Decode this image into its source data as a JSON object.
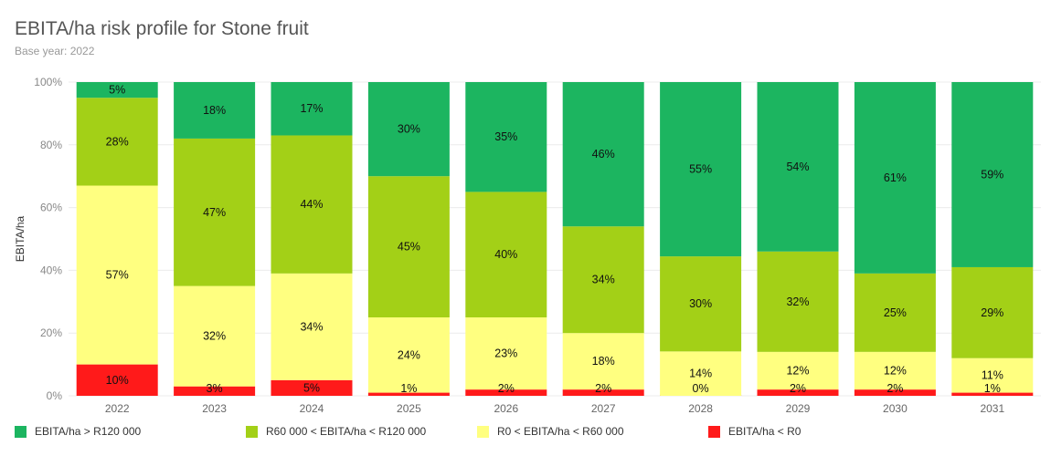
{
  "title": "EBITA/ha risk profile for Stone fruit",
  "subtitle": "Base year: 2022",
  "chart_data": {
    "type": "bar",
    "stacked": true,
    "percent_stacked": true,
    "title": "EBITA/ha risk profile for Stone fruit",
    "subtitle": "Base year: 2022",
    "xlabel": "",
    "ylabel": "EBITA/ha",
    "ylim": [
      0,
      100
    ],
    "yticks": [
      "0%",
      "20%",
      "40%",
      "60%",
      "80%",
      "100%"
    ],
    "categories": [
      "2022",
      "2023",
      "2024",
      "2025",
      "2026",
      "2027",
      "2028",
      "2029",
      "2030",
      "2031"
    ],
    "grid": true,
    "legend_position": "bottom",
    "series": [
      {
        "name": "EBITA/ha < R0",
        "color": "#ff1a1a",
        "values": [
          10,
          3,
          5,
          1,
          2,
          2,
          0,
          2,
          2,
          1
        ],
        "labels": [
          "10%",
          "3%",
          "5%",
          "1%",
          "2%",
          "2%",
          "0%",
          "2%",
          "2%",
          "1%"
        ]
      },
      {
        "name": "R0 < EBITA/ha < R60 000",
        "color": "#ffff80",
        "values": [
          57,
          32,
          34,
          24,
          23,
          18,
          14,
          12,
          12,
          11
        ],
        "labels": [
          "57%",
          "32%",
          "34%",
          "24%",
          "23%",
          "18%",
          "14%",
          "12%",
          "12%",
          "11%"
        ]
      },
      {
        "name": "R60 000 < EBITA/ha < R120 000",
        "color": "#a3d017",
        "values": [
          28,
          47,
          44,
          45,
          40,
          34,
          30,
          32,
          25,
          29
        ],
        "labels": [
          "28%",
          "47%",
          "44%",
          "45%",
          "40%",
          "34%",
          "30%",
          "32%",
          "25%",
          "29%"
        ]
      },
      {
        "name": "EBITA/ha > R120 000",
        "color": "#1cb560",
        "values": [
          5,
          18,
          17,
          30,
          35,
          46,
          55,
          54,
          61,
          59
        ],
        "labels": [
          "5%",
          "18%",
          "17%",
          "30%",
          "35%",
          "46%",
          "55%",
          "54%",
          "61%",
          "59%"
        ]
      }
    ]
  },
  "legend": [
    {
      "label": "EBITA/ha > R120 000",
      "color": "#1cb560"
    },
    {
      "label": "R60 000 < EBITA/ha < R120 000",
      "color": "#a3d017"
    },
    {
      "label": "R0 < EBITA/ha < R60 000",
      "color": "#ffff80"
    },
    {
      "label": "EBITA/ha < R0",
      "color": "#ff1a1a"
    }
  ]
}
